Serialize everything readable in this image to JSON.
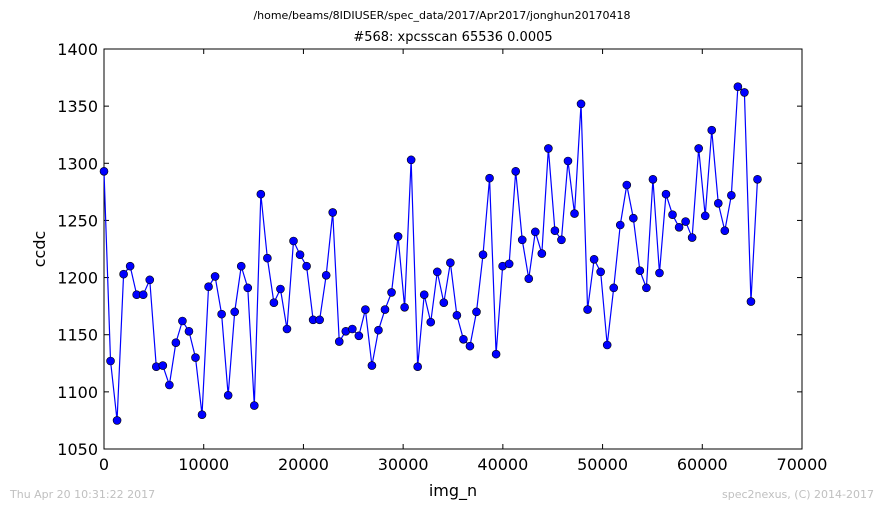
{
  "header": {
    "path": "/home/beams/8IDIUSER/spec_data/2017/Apr2017/jonghun20170418",
    "scan_title": "#568: xpcsscan 65536 0.0005"
  },
  "footer": {
    "timestamp": "Thu Apr 20 10:31:22 2017",
    "credit": "spec2nexus, (C) 2014-2017"
  },
  "chart_data": {
    "type": "line",
    "title": "#568: xpcsscan 65536 0.0005",
    "xlabel": "img_n",
    "ylabel": "ccdc",
    "xlim": [
      0,
      70000
    ],
    "ylim": [
      1050,
      1400
    ],
    "xticks": [
      0,
      10000,
      20000,
      30000,
      40000,
      50000,
      60000,
      70000
    ],
    "yticks": [
      1050,
      1100,
      1150,
      1200,
      1250,
      1300,
      1350,
      1400
    ],
    "grid": false,
    "color": "#0000ff",
    "marker": "circle",
    "series": [
      {
        "x": [
          0,
          655,
          1311,
          1966,
          2621,
          3277,
          3932,
          4588,
          5243,
          5898,
          6554,
          7209,
          7864,
          8520,
          9175,
          9830,
          10486,
          11141,
          11796,
          12452,
          13107,
          13763,
          14418,
          15073,
          15729,
          16384,
          17039,
          17695,
          18350,
          19005,
          19661,
          20316,
          20972,
          21627,
          22282,
          22938,
          23593,
          24248,
          24904,
          25559,
          26214,
          26870,
          27525,
          28180,
          28836,
          29491,
          30147,
          30802,
          31457,
          32113,
          32768,
          33423,
          34079,
          34734,
          35389,
          36045,
          36700,
          37356,
          38011,
          38666,
          39322,
          39977,
          40632,
          41288,
          41943,
          42598,
          43254,
          43909,
          44565,
          45220,
          45875,
          46531,
          47186,
          47841,
          48497,
          49152,
          49807,
          50463,
          51118,
          51773,
          52429,
          53084,
          53740,
          54395,
          55050,
          55706,
          56361,
          57016,
          57672,
          58327,
          58982,
          59638,
          60293,
          60948,
          61604,
          62259,
          62915,
          63570,
          64225,
          64881,
          65536
        ],
        "y": [
          1293,
          1127,
          1075,
          1203,
          1210,
          1185,
          1185,
          1198,
          1122,
          1123,
          1106,
          1143,
          1162,
          1153,
          1130,
          1080,
          1192,
          1201,
          1168,
          1097,
          1170,
          1210,
          1191,
          1088,
          1273,
          1217,
          1178,
          1190,
          1155,
          1232,
          1220,
          1210,
          1163,
          1163,
          1202,
          1257,
          1144,
          1153,
          1155,
          1149,
          1172,
          1123,
          1154,
          1172,
          1187,
          1236,
          1174,
          1303,
          1122,
          1185,
          1161,
          1205,
          1178,
          1213,
          1167,
          1146,
          1140,
          1170,
          1220,
          1287,
          1133,
          1210,
          1212,
          1293,
          1233,
          1199,
          1240,
          1221,
          1313,
          1241,
          1233,
          1302,
          1256,
          1352,
          1172,
          1216,
          1205,
          1141,
          1191,
          1246,
          1281,
          1252,
          1206,
          1191,
          1286,
          1204,
          1273,
          1255,
          1244,
          1249,
          1235,
          1313,
          1254,
          1329,
          1265,
          1241,
          1272,
          1367,
          1362,
          1179,
          1286
        ]
      }
    ]
  }
}
